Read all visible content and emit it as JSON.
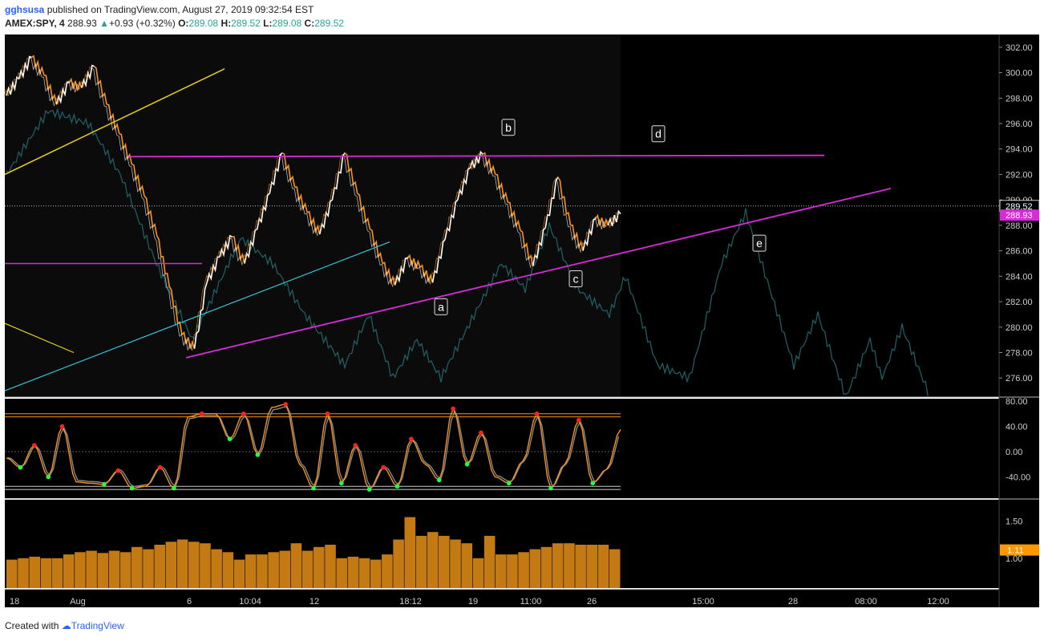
{
  "header": {
    "user": "gghsusa",
    "published": "published on TradingView.com, August 27, 2019 09:32:54 EST",
    "symbol": "AMEX:SPY, 4",
    "last": "288.93",
    "change_arrow": "▲",
    "change": "+0.93 (+0.32%)",
    "o_label": "O:",
    "o_val": "289.08",
    "h_label": "H:",
    "h_val": "289.52",
    "l_label": "L:",
    "l_val": "289.08",
    "c_label": "C:",
    "c_val": "289.52"
  },
  "footer": {
    "created": "Created with",
    "brand": "TradingView"
  },
  "colors": {
    "background": "#000000",
    "price_up": "#ffffff",
    "price_down": "#f7931a",
    "ghost": "#1e5e63",
    "magenta": "#d62cd6",
    "yellow": "#e8d21a",
    "cyan": "#33c6d6",
    "volume": "#c47a12",
    "badge": "#ff9800"
  },
  "chart_data": [
    {
      "type": "line",
      "title": "AMEX:SPY, 4",
      "ylim": [
        274.5,
        303
      ],
      "y_ticks": [
        "302.00",
        "300.00",
        "298.00",
        "296.00",
        "294.00",
        "292.00",
        "290.00",
        "288.00",
        "286.00",
        "284.00",
        "282.00",
        "280.00",
        "278.00",
        "276.00"
      ],
      "x_ticks": [
        "18",
        "Aug",
        "6",
        "10:04",
        "12",
        "18:12",
        "19",
        "11:00",
        "26",
        "15:00",
        "28",
        "08:00",
        "12:00"
      ],
      "series": [
        {
          "values": [
            298.2,
            299.5,
            301.2,
            299.8,
            297.5,
            299.2,
            298.8,
            300.5,
            297.5,
            295.2,
            292.8,
            290.3,
            287.2,
            283.2,
            279.4,
            278.3,
            283.5,
            285.5,
            287.1,
            285.0,
            287.7,
            290.5,
            293.7,
            291.0,
            289.0,
            287.3,
            290.0,
            293.7,
            290.5,
            287.7,
            285.0,
            283.3,
            285.4,
            284.7,
            283.5,
            286.9,
            290.0,
            292.5,
            293.6,
            292.0,
            289.8,
            287.6,
            284.8,
            287.8,
            291.8,
            288.0,
            286.0,
            288.5,
            288.0,
            288.9
          ]
        }
      ],
      "last_price_badge": "288.93",
      "high_price_badge": "289.52",
      "wave_labels": [
        "a",
        "b",
        "c",
        "d",
        "e"
      ]
    },
    {
      "type": "line",
      "y_ticks": [
        "80.00",
        "40.00",
        "0.00",
        "-40.00"
      ],
      "ylim": [
        -70,
        80
      ],
      "levels": [
        60,
        55,
        -55,
        -60
      ],
      "series": [
        {
          "values": [
            -10,
            -25,
            10,
            -40,
            40,
            -48,
            -50,
            -52,
            -30,
            -58,
            -55,
            -25,
            -58,
            55,
            60,
            60,
            20,
            60,
            -5,
            70,
            75,
            -20,
            -58,
            60,
            -50,
            10,
            -60,
            -25,
            -55,
            20,
            -20,
            -45,
            68,
            -20,
            30,
            -40,
            -50,
            -15,
            60,
            -58,
            -20,
            50,
            -50,
            -28,
            35
          ]
        }
      ]
    },
    {
      "type": "bar",
      "y_ticks": [
        "1.50",
        "1.00"
      ],
      "ylim": [
        0.6,
        1.75
      ],
      "last_value_badge": "1.11",
      "values": [
        0.98,
        1.0,
        1.02,
        1.0,
        1.0,
        1.05,
        1.08,
        1.1,
        1.07,
        1.1,
        1.08,
        1.15,
        1.12,
        1.18,
        1.22,
        1.25,
        1.22,
        1.2,
        1.12,
        1.08,
        0.98,
        1.05,
        1.05,
        1.08,
        1.1,
        1.2,
        1.1,
        1.15,
        1.18,
        1.0,
        1.02,
        1.0,
        0.98,
        1.05,
        1.25,
        1.55,
        1.3,
        1.35,
        1.3,
        1.25,
        1.2,
        1.0,
        1.3,
        1.05,
        1.05,
        1.08,
        1.12,
        1.15,
        1.2,
        1.2,
        1.18,
        1.18,
        1.18,
        1.12
      ]
    }
  ]
}
